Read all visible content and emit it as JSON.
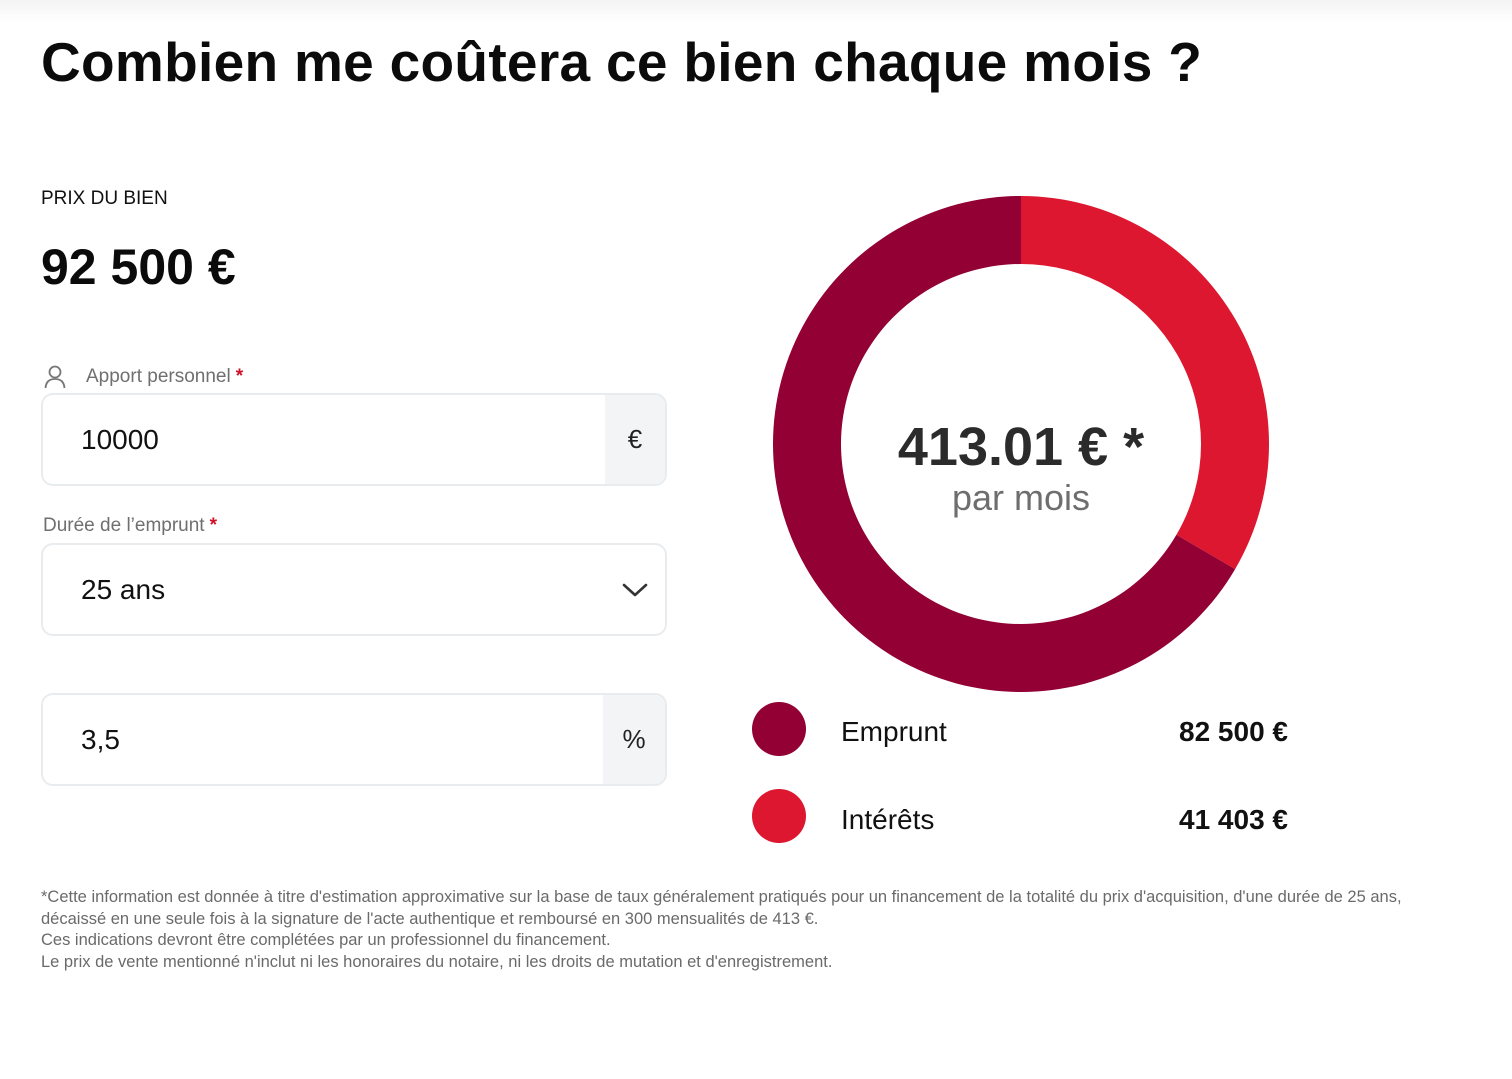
{
  "title": "Combien me coûtera ce bien chaque mois ?",
  "price": {
    "label": "PRIX DU BIEN",
    "value": "92 500 €"
  },
  "apport": {
    "label": "Apport personnel",
    "required_mark": "*",
    "value": "10000",
    "suffix": "€"
  },
  "duree": {
    "label": "Durée de l’emprunt",
    "required_mark": "*",
    "selected": "25 ans"
  },
  "taux": {
    "value": "3,5",
    "suffix": "%"
  },
  "summary": {
    "monthly": "413.01 € *",
    "monthly_sub": "par mois"
  },
  "chart_data": {
    "type": "pie",
    "donut": true,
    "slices": [
      {
        "name": "Emprunt",
        "value": 82500,
        "display": "82 500 €",
        "color": "#920034"
      },
      {
        "name": "Intérêts",
        "value": 41403,
        "display": "41 403 €",
        "color": "#dd1730"
      }
    ]
  },
  "disclaimer": [
    "*Cette information est donnée à titre d'estimation approximative sur la base de taux généralement pratiqués pour un financement de la totalité du prix d'acquisition, d'une durée de 25 ans, décaissé en une seule fois à la signature de l'acte authentique et remboursé en 300 mensualités de 413 €.",
    "Ces indications devront être complétées par un professionnel du financement.",
    "Le prix de vente mentionné n'inclut ni les honoraires du notaire, ni les droits de mutation et d'enregistrement."
  ]
}
